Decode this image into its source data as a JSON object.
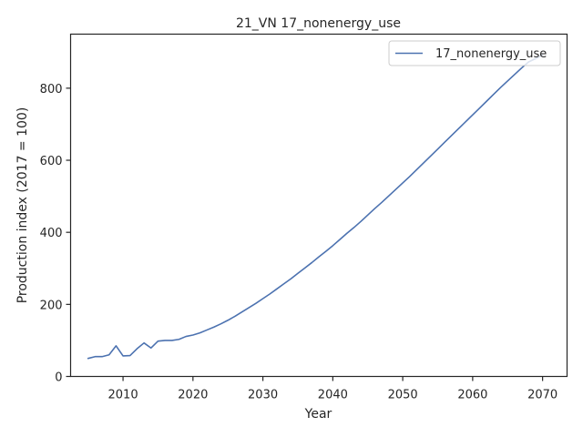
{
  "chart_data": {
    "type": "line",
    "title": "21_VN 17_nonenergy_use",
    "xlabel": "Year",
    "ylabel": "Production index (2017 = 100)",
    "xlim": [
      2002.5,
      2073.5
    ],
    "ylim": [
      0,
      950
    ],
    "xticks": [
      2010,
      2020,
      2030,
      2040,
      2050,
      2060,
      2070
    ],
    "yticks": [
      0,
      200,
      400,
      600,
      800
    ],
    "grid": false,
    "legend_position": "top-right",
    "series": [
      {
        "name": "17_nonenergy_use",
        "color": "#4c72b0",
        "x": [
          2005,
          2006,
          2007,
          2008,
          2009,
          2010,
          2011,
          2012,
          2013,
          2014,
          2015,
          2016,
          2017,
          2018,
          2019,
          2020,
          2021,
          2022,
          2023,
          2024,
          2025,
          2026,
          2027,
          2028,
          2029,
          2030,
          2031,
          2032,
          2033,
          2034,
          2035,
          2036,
          2037,
          2038,
          2039,
          2040,
          2041,
          2042,
          2043,
          2044,
          2045,
          2046,
          2047,
          2048,
          2049,
          2050,
          2051,
          2052,
          2053,
          2054,
          2055,
          2056,
          2057,
          2058,
          2059,
          2060,
          2061,
          2062,
          2063,
          2064,
          2065,
          2066,
          2067,
          2068,
          2069,
          2070
        ],
        "values": [
          50,
          55,
          55,
          60,
          85,
          57,
          58,
          77,
          93,
          79,
          98,
          100,
          100,
          103,
          111,
          115,
          121,
          129,
          137,
          146,
          156,
          167,
          179,
          191,
          203,
          216,
          229,
          243,
          257,
          271,
          286,
          301,
          316,
          332,
          347,
          363,
          380,
          397,
          413,
          430,
          448,
          466,
          483,
          501,
          519,
          537,
          555,
          574,
          593,
          612,
          631,
          650,
          669,
          688,
          707,
          726,
          745,
          764,
          783,
          802,
          820,
          838,
          856,
          873,
          882,
          892
        ]
      }
    ]
  }
}
